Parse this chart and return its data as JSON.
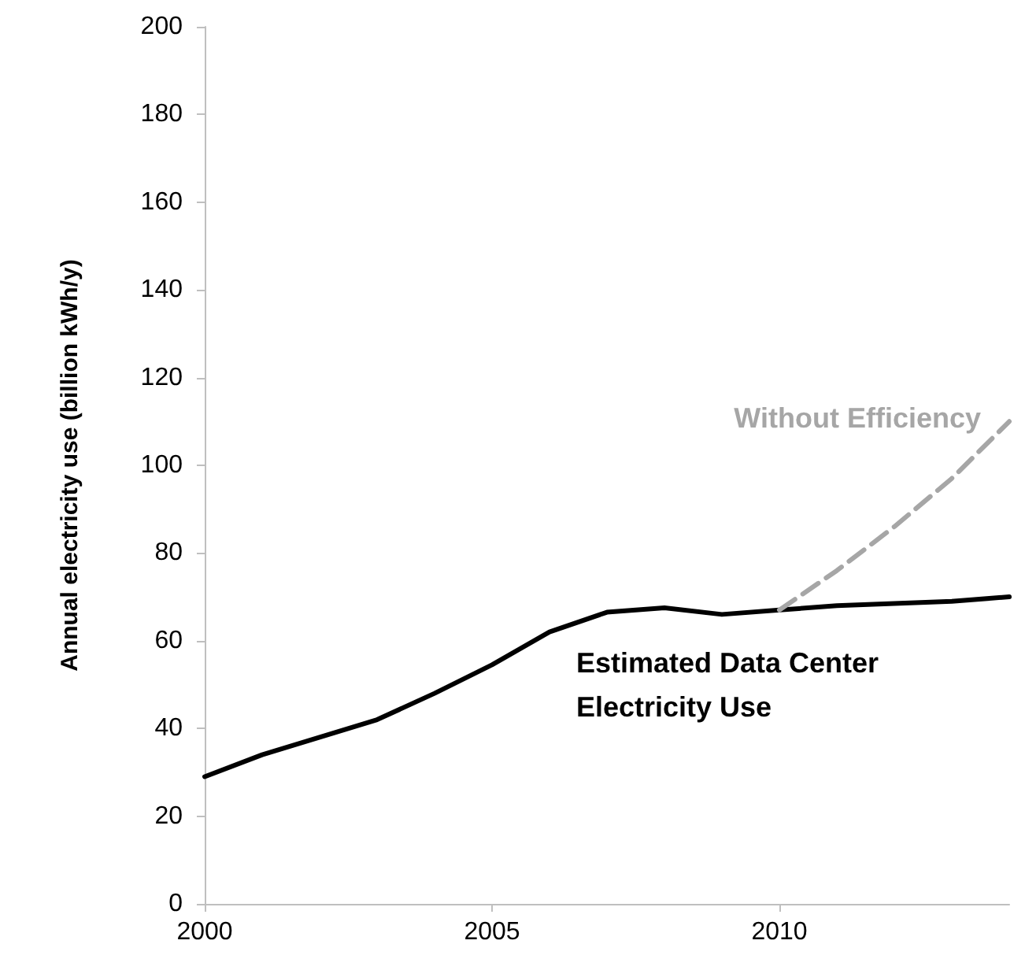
{
  "chart_data": {
    "type": "line",
    "ylabel": "Annual electricity use (billion kWh/y)",
    "xlim": [
      2000,
      2014
    ],
    "xticks": [
      2000,
      2005,
      2010
    ],
    "ylim": [
      0,
      200
    ],
    "yticks": [
      0,
      20,
      40,
      60,
      80,
      100,
      120,
      140,
      160,
      180,
      200
    ],
    "grid": false,
    "legend": false,
    "marker": "none",
    "series": [
      {
        "name": "Estimated Data Center Electricity Use",
        "color": "#000000",
        "line_style": "solid",
        "x": [
          2000,
          2001,
          2002,
          2003,
          2004,
          2005,
          2006,
          2007,
          2008,
          2009,
          2010,
          2011,
          2012,
          2013,
          2014
        ],
        "values": [
          29,
          34,
          38,
          42,
          48,
          54.5,
          62,
          66.5,
          67.5,
          66,
          67,
          68,
          68.5,
          69,
          70
        ]
      },
      {
        "name": "Without Efficiency",
        "color": "#a6a6a6",
        "line_style": "dashed",
        "x": [
          2010,
          2011,
          2012,
          2013,
          2014
        ],
        "values": [
          67,
          76,
          86,
          97,
          110
        ]
      }
    ]
  }
}
